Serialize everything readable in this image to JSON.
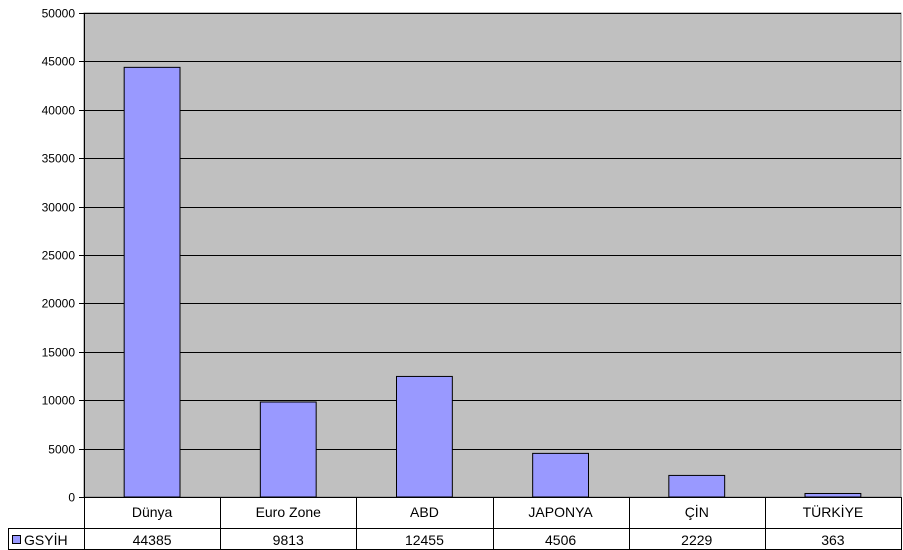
{
  "chart_data": {
    "type": "bar",
    "categories": [
      "Dünya",
      "Euro Zone",
      "ABD",
      "JAPONYA",
      "ÇİN",
      "TÜRKİYE"
    ],
    "series": [
      {
        "name": "GSYİH",
        "values": [
          44385,
          9813,
          12455,
          4506,
          2229,
          363
        ],
        "color": "#9999ff"
      }
    ],
    "ylim": [
      0,
      50000
    ],
    "yticks": [
      0,
      5000,
      10000,
      15000,
      20000,
      25000,
      30000,
      35000,
      40000,
      45000,
      50000
    ],
    "grid": true,
    "plot_background": "#c0c0c0",
    "legend_placement": "data-table-left",
    "data_table": true
  }
}
